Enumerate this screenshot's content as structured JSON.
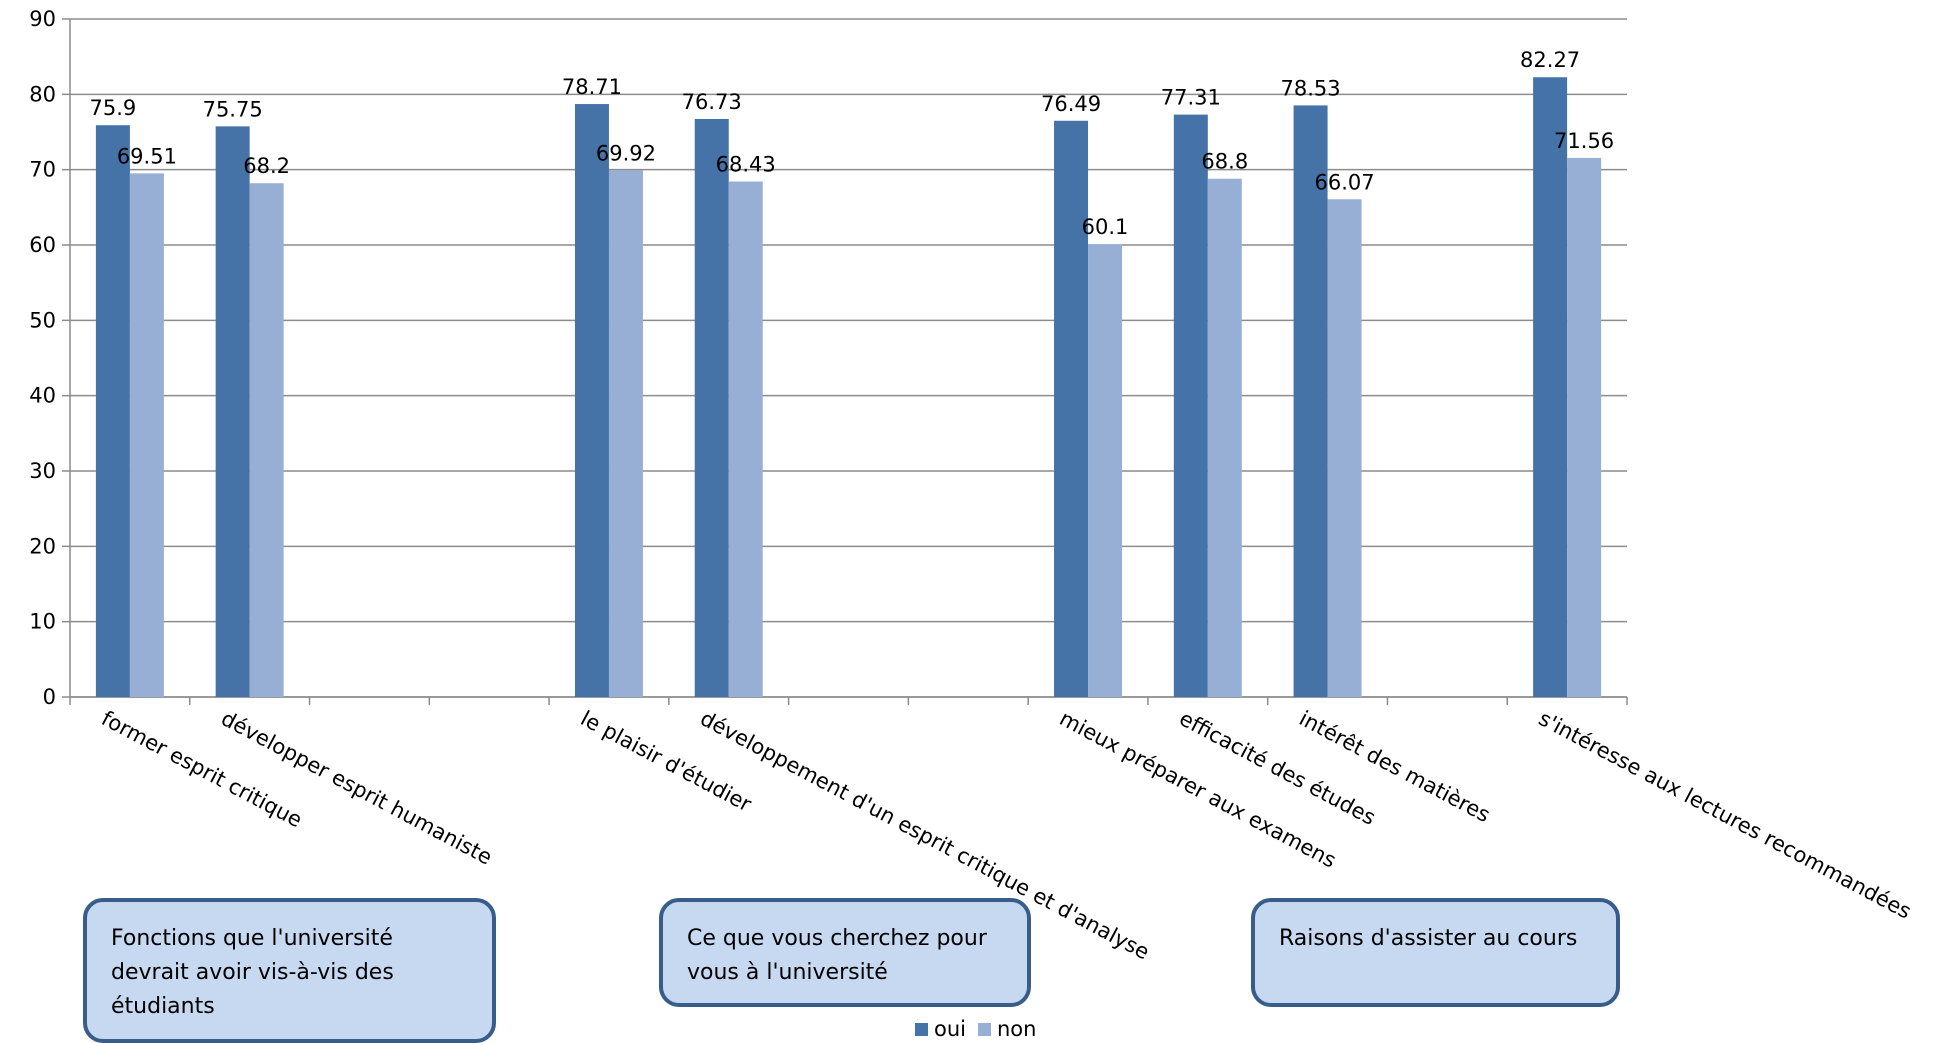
{
  "chart_data": {
    "type": "bar",
    "categories": [
      "former esprit critique",
      "développer esprit humaniste",
      "",
      "",
      "le plaisir d'étudier",
      "développement d'un esprit critique et d'analyse",
      "",
      "",
      "mieux préparer aux examens",
      "efficacité des études",
      "intérêt des matières",
      "",
      "s'intéresse aux lectures recommandées"
    ],
    "series": [
      {
        "name": "oui",
        "color": "#4572a7",
        "values": [
          75.9,
          75.75,
          null,
          null,
          78.71,
          76.73,
          null,
          null,
          76.49,
          77.31,
          78.53,
          null,
          82.27
        ]
      },
      {
        "name": "non",
        "color": "#98afd5",
        "values": [
          69.51,
          68.2,
          null,
          null,
          69.92,
          68.43,
          null,
          null,
          60.1,
          68.8,
          66.07,
          null,
          71.56
        ]
      }
    ],
    "ylim": [
      0,
      90
    ],
    "yticks": [
      0,
      10,
      20,
      30,
      40,
      50,
      60,
      70,
      80,
      90
    ],
    "grid": true,
    "legend_position": "bottom",
    "title": "",
    "xlabel": "",
    "ylabel": ""
  },
  "callouts": [
    {
      "text": "Fonctions que l'université devrait avoir vis-à-vis des étudiants"
    },
    {
      "text": "Ce que vous cherchez pour vous à l'université"
    },
    {
      "text": "Raisons d'assister au cours"
    }
  ],
  "legend": [
    {
      "label": "oui",
      "color": "#4572a7"
    },
    {
      "label": "non",
      "color": "#98afd5"
    }
  ]
}
